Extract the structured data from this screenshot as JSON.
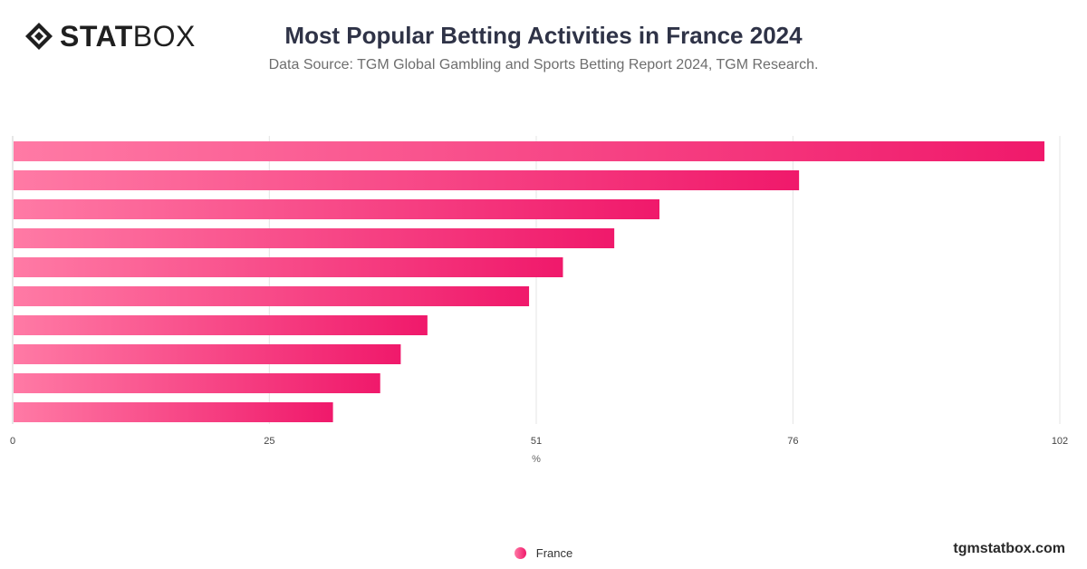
{
  "brand": {
    "logo_bold": "STAT",
    "logo_light": "BOX",
    "site": "tgmstatbox.com"
  },
  "chart_data": {
    "type": "bar",
    "orientation": "horizontal",
    "title": "Most Popular Betting Activities in France 2024",
    "subtitle": "Data Source: TGM Global Gambling and Sports Betting Report 2024, TGM Research.",
    "xlabel": "%",
    "xlim": [
      0,
      102
    ],
    "xticks": [
      "0",
      "25",
      "51",
      "76",
      "102"
    ],
    "categories": [
      "",
      "",
      "",
      "",
      "",
      "",
      "",
      "",
      "",
      ""
    ],
    "series": [
      {
        "name": "France",
        "values": [
          100.5,
          76.6,
          63.0,
          58.6,
          53.6,
          50.3,
          40.4,
          37.8,
          35.8,
          31.2
        ]
      }
    ],
    "grid": true,
    "legend_position": "bottom-center",
    "colors": {
      "bar_start": "#ff7aa5",
      "bar_end": "#f0196b"
    }
  }
}
